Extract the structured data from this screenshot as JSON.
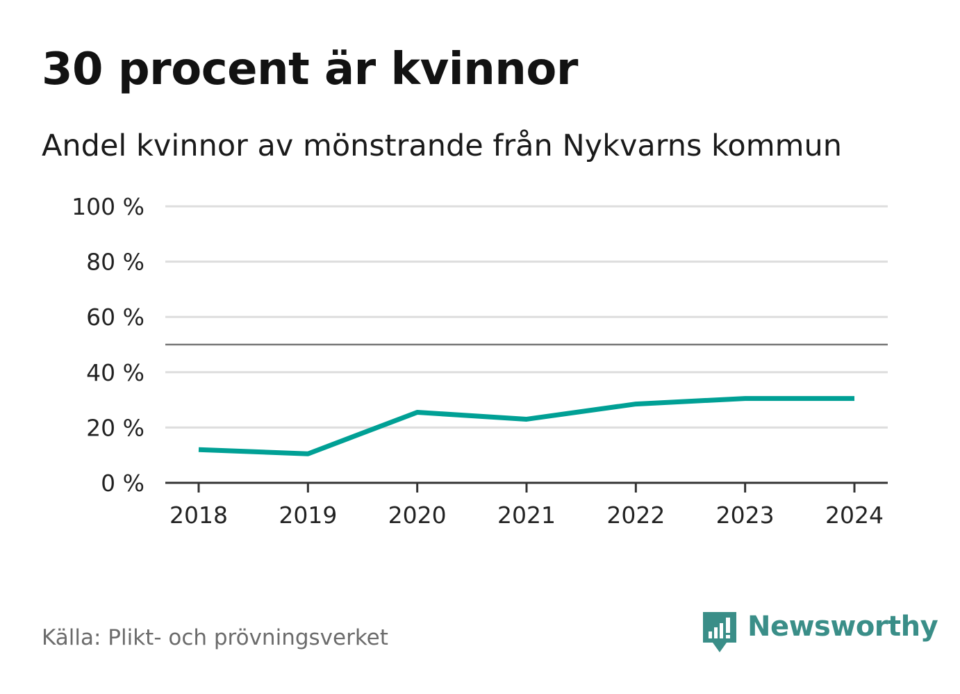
{
  "header": {
    "title": "30 procent är kvinnor",
    "subtitle": "Andel kvinnor av mönstrande från Nykvarns kommun"
  },
  "footer": {
    "source": "Källa: Plikt- och prövningsverket",
    "brand": "Newsworthy"
  },
  "colors": {
    "line": "#00a095",
    "grid": "#dddddd",
    "axis": "#333333",
    "reference": "#777777",
    "tick_text": "#222222",
    "brand": "#3a8e88"
  },
  "chart_data": {
    "type": "line",
    "title": "30 procent är kvinnor",
    "subtitle": "Andel kvinnor av mönstrande från Nykvarns kommun",
    "xlabel": "",
    "ylabel": "",
    "categories": [
      "2018",
      "2019",
      "2020",
      "2021",
      "2022",
      "2023",
      "2024"
    ],
    "series": [
      {
        "name": "Andel kvinnor",
        "values": [
          12,
          10.5,
          25.5,
          23,
          28.5,
          30.5,
          30.5
        ]
      }
    ],
    "reference_line": 50,
    "ylim": [
      0,
      100
    ],
    "yticks": [
      0,
      20,
      40,
      60,
      80,
      100
    ],
    "ytick_labels": [
      "0 %",
      "20 %",
      "40 %",
      "60 %",
      "80 %",
      "100 %"
    ],
    "grid": true,
    "legend": "none"
  }
}
